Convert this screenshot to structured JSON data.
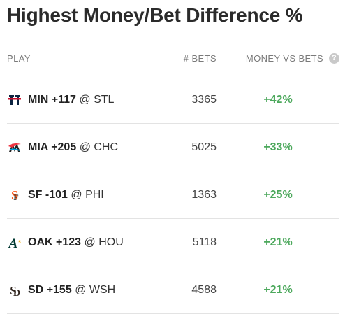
{
  "title": "Highest Money/Bet Difference %",
  "columns": {
    "play": "PLAY",
    "bets": "# BETS",
    "money_vs_bets": "MONEY VS BETS"
  },
  "colors": {
    "positive": "#4ca85c"
  },
  "rows": [
    {
      "team": "MIN",
      "odds": "+117",
      "opponent": "@ STL",
      "bets": "3365",
      "diff": "+42%",
      "icon": "twins-logo-icon"
    },
    {
      "team": "MIA",
      "odds": "+205",
      "opponent": "@ CHC",
      "bets": "5025",
      "diff": "+33%",
      "icon": "marlins-logo-icon"
    },
    {
      "team": "SF",
      "odds": "-101",
      "opponent": "@ PHI",
      "bets": "1363",
      "diff": "+25%",
      "icon": "giants-logo-icon"
    },
    {
      "team": "OAK",
      "odds": "+123",
      "opponent": "@ HOU",
      "bets": "5118",
      "diff": "+21%",
      "icon": "athletics-logo-icon"
    },
    {
      "team": "SD",
      "odds": "+155",
      "opponent": "@ WSH",
      "bets": "4588",
      "diff": "+21%",
      "icon": "padres-logo-icon"
    }
  ]
}
